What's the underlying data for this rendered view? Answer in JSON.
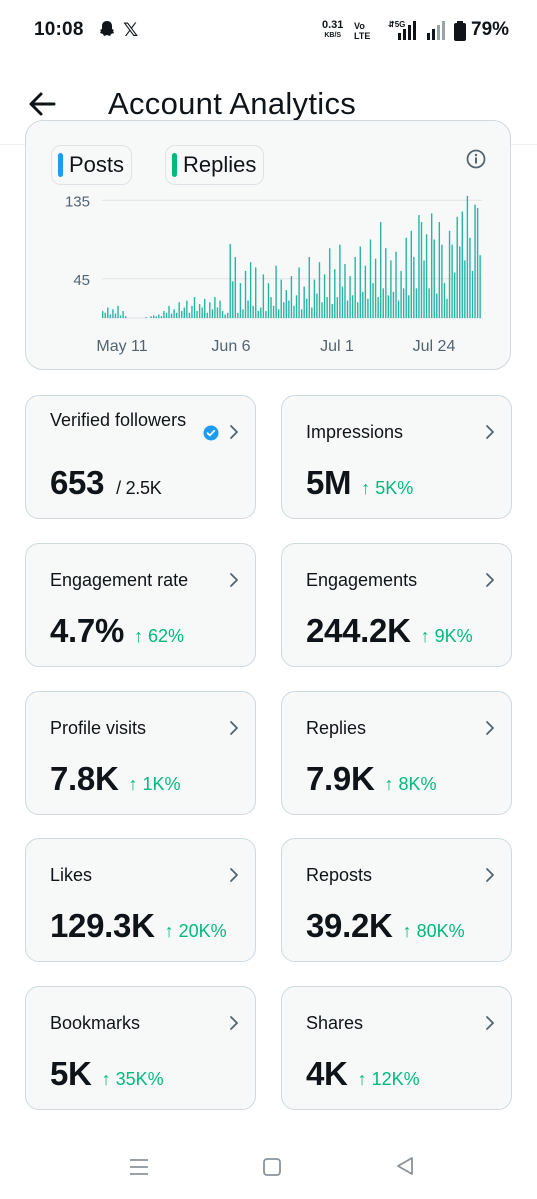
{
  "status_bar": {
    "time": "10:08",
    "speed_value": "0.31",
    "speed_unit": "KB/S",
    "volte_top": "Vo",
    "volte_bottom": "LTE",
    "network": "5G",
    "battery": "79%"
  },
  "header": {
    "title": "Account Analytics"
  },
  "chart": {
    "legend": [
      "Posts",
      "Replies"
    ],
    "colors": {
      "posts": "#1d9bf0",
      "replies": "#00ba7c",
      "bars": "#2ab4a3"
    }
  },
  "chart_data": {
    "type": "bar",
    "title": "",
    "xlabel": "",
    "ylabel": "",
    "x_tick_labels": [
      "May 11",
      "Jun 6",
      "Jul 1",
      "Jul 24"
    ],
    "y_tick_labels": [
      "45",
      "135"
    ],
    "ylim": [
      0,
      180
    ],
    "grid": true,
    "series": [
      {
        "name": "Posts",
        "values": []
      },
      {
        "name": "Replies",
        "values": [
          8,
          6,
          12,
          4,
          10,
          5,
          14,
          3,
          8,
          2,
          0,
          0,
          0,
          0,
          0,
          0,
          0,
          1,
          0,
          2,
          3,
          2,
          4,
          2,
          8,
          6,
          14,
          5,
          10,
          6,
          18,
          8,
          12,
          20,
          6,
          14,
          24,
          8,
          16,
          12,
          22,
          6,
          18,
          10,
          24,
          12,
          20,
          8,
          4,
          6,
          85,
          42,
          70,
          6,
          40,
          10,
          54,
          20,
          64,
          14,
          58,
          8,
          12,
          50,
          8,
          40,
          24,
          14,
          60,
          10,
          44,
          18,
          32,
          20,
          48,
          14,
          26,
          58,
          10,
          36,
          22,
          70,
          12,
          44,
          28,
          64,
          18,
          50,
          24,
          80,
          16,
          56,
          24,
          84,
          36,
          62,
          20,
          48,
          26,
          70,
          18,
          82,
          30,
          60,
          22,
          90,
          40,
          68,
          24,
          110,
          34,
          80,
          26,
          66,
          30,
          76,
          20,
          54,
          34,
          92,
          26,
          100,
          70,
          34,
          118,
          110,
          66,
          96,
          34,
          120,
          90,
          28,
          110,
          84,
          40,
          22,
          100,
          84,
          52,
          116,
          82,
          122,
          66,
          140,
          92,
          54,
          130,
          126,
          72
        ]
      }
    ]
  },
  "metrics": [
    {
      "label": "Verified followers",
      "value": "653",
      "sub": "/ 2.5K",
      "delta": "",
      "verified_icon": true
    },
    {
      "label": "Impressions",
      "value": "5M",
      "sub": "",
      "delta": "↑ 5K%"
    },
    {
      "label": "Engagement rate",
      "value": "4.7%",
      "sub": "",
      "delta": "↑ 62%"
    },
    {
      "label": "Engagements",
      "value": "244.2K",
      "sub": "",
      "delta": "↑ 9K%"
    },
    {
      "label": "Profile visits",
      "value": "7.8K",
      "sub": "",
      "delta": "↑ 1K%"
    },
    {
      "label": "Replies",
      "value": "7.9K",
      "sub": "",
      "delta": "↑ 8K%"
    },
    {
      "label": "Likes",
      "value": "129.3K",
      "sub": "",
      "delta": "↑ 20K%"
    },
    {
      "label": "Reposts",
      "value": "39.2K",
      "sub": "",
      "delta": "↑ 80K%"
    },
    {
      "label": "Bookmarks",
      "value": "5K",
      "sub": "",
      "delta": "↑ 35K%"
    },
    {
      "label": "Shares",
      "value": "4K",
      "sub": "",
      "delta": "↑ 12K%"
    }
  ],
  "nav": {
    "icons": [
      "menu-icon",
      "home-icon",
      "back-icon"
    ]
  }
}
